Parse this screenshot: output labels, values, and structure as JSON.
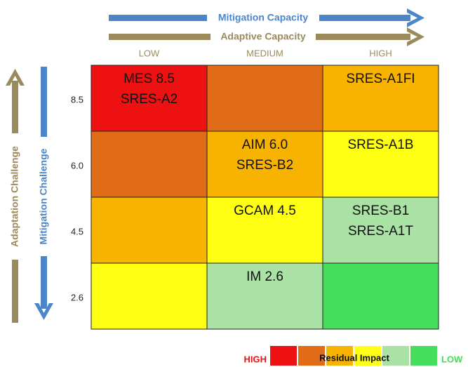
{
  "arrows": {
    "mitigation_capacity": "Mitigation Capacity",
    "adaptive_capacity": "Adaptive Capacity",
    "adaptation_challenge": "Adaptation Challenge",
    "mitigation_challenge": "Mitigation Challenge"
  },
  "column_headers": [
    "LOW",
    "MEDIUM",
    "HIGH"
  ],
  "rows": [
    {
      "label": "8.5",
      "cells": [
        {
          "color": "#ee1111",
          "lines": [
            "MES 8.5",
            "SRES-A2"
          ]
        },
        {
          "color": "#e06c17",
          "lines": []
        },
        {
          "color": "#f8b300",
          "lines": [
            "SRES-A1FI"
          ]
        }
      ]
    },
    {
      "label": "6.0",
      "cells": [
        {
          "color": "#e06c17",
          "lines": []
        },
        {
          "color": "#f8b300",
          "lines": [
            "AIM 6.0",
            "SRES-B2"
          ]
        },
        {
          "color": "#ffff14",
          "lines": [
            "SRES-A1B"
          ]
        }
      ]
    },
    {
      "label": "4.5",
      "cells": [
        {
          "color": "#f8b300",
          "lines": []
        },
        {
          "color": "#ffff14",
          "lines": [
            "GCAM 4.5"
          ]
        },
        {
          "color": "#a9e2a4",
          "lines": [
            "SRES-B1",
            "SRES-A1T"
          ]
        }
      ]
    },
    {
      "label": "2.6",
      "cells": [
        {
          "color": "#ffff14",
          "lines": []
        },
        {
          "color": "#a9e2a4",
          "lines": [
            "IM 2.6"
          ]
        },
        {
          "color": "#45dd5a",
          "lines": []
        }
      ]
    }
  ],
  "legend": {
    "high": "HIGH",
    "title": "Residual Impact",
    "low": "LOW",
    "colors": [
      "#ee1111",
      "#e06c17",
      "#f8b300",
      "#ffff14",
      "#a9e2a4",
      "#45dd5a"
    ]
  }
}
